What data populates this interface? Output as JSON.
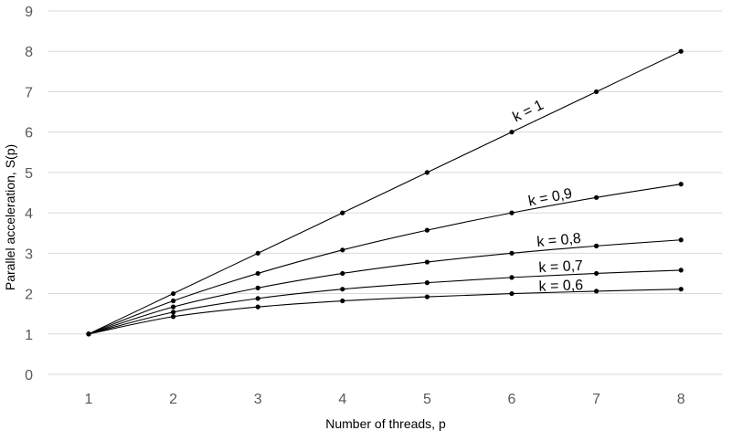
{
  "chart_data": {
    "type": "line",
    "title": "",
    "xlabel": "Number of threads, p",
    "ylabel": "Parallel acceleration, S(p)",
    "x": [
      1,
      2,
      3,
      4,
      5,
      6,
      7,
      8
    ],
    "xticks": [
      "1",
      "2",
      "3",
      "4",
      "5",
      "6",
      "7",
      "8"
    ],
    "yticks": [
      "0",
      "1",
      "2",
      "3",
      "4",
      "5",
      "6",
      "7",
      "8",
      "9"
    ],
    "ylim": [
      0,
      9
    ],
    "grid": true,
    "legend": "none",
    "series": [
      {
        "name": "k = 1",
        "values": [
          1,
          2.0,
          3.0,
          4.0,
          5.0,
          6.0,
          7.0,
          8.0
        ]
      },
      {
        "name": "k = 0,9",
        "values": [
          1,
          1.82,
          2.5,
          3.08,
          3.57,
          4.0,
          4.38,
          4.71
        ]
      },
      {
        "name": "k = 0,8",
        "values": [
          1,
          1.67,
          2.14,
          2.5,
          2.78,
          3.0,
          3.18,
          3.33
        ]
      },
      {
        "name": "k = 0,7",
        "values": [
          1,
          1.54,
          1.88,
          2.11,
          2.27,
          2.4,
          2.5,
          2.58
        ]
      },
      {
        "name": "k = 0,6",
        "values": [
          1,
          1.43,
          1.67,
          1.82,
          1.92,
          2.0,
          2.06,
          2.11
        ]
      }
    ]
  }
}
